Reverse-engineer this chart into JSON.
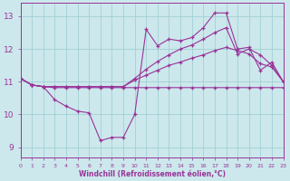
{
  "background_color": "#cce8ec",
  "grid_color": "#99ccd0",
  "line_color": "#993399",
  "xlabel": "Windchill (Refroidissement éolien,°C)",
  "xlim": [
    0,
    23
  ],
  "ylim": [
    8.7,
    13.4
  ],
  "yticks": [
    9,
    10,
    11,
    12,
    13
  ],
  "xticks": [
    0,
    1,
    2,
    3,
    4,
    5,
    6,
    7,
    8,
    9,
    10,
    11,
    12,
    13,
    14,
    15,
    16,
    17,
    18,
    19,
    20,
    21,
    22,
    23
  ],
  "series": [
    {
      "x": [
        0,
        1,
        2,
        3,
        4,
        5,
        6,
        7,
        8,
        9,
        10,
        11,
        12,
        13,
        14,
        15,
        16,
        17,
        18,
        19,
        20,
        21,
        22,
        23
      ],
      "y": [
        11.1,
        10.9,
        10.85,
        10.45,
        10.25,
        10.1,
        10.05,
        9.2,
        9.3,
        9.3,
        10.0,
        12.6,
        12.1,
        12.3,
        12.25,
        12.35,
        12.65,
        13.1,
        13.1,
        12.0,
        12.05,
        11.35,
        11.6,
        11.0
      ]
    },
    {
      "x": [
        0,
        1,
        2,
        3,
        4,
        5,
        6,
        7,
        8,
        9,
        10,
        11,
        12,
        13,
        14,
        15,
        16,
        17,
        18,
        19,
        20,
        21,
        22,
        23
      ],
      "y": [
        11.1,
        10.9,
        10.85,
        10.82,
        10.82,
        10.82,
        10.82,
        10.82,
        10.82,
        10.82,
        10.82,
        10.82,
        10.82,
        10.82,
        10.82,
        10.82,
        10.82,
        10.82,
        10.82,
        10.82,
        10.82,
        10.82,
        10.82,
        10.82
      ]
    },
    {
      "x": [
        0,
        1,
        2,
        3,
        4,
        5,
        6,
        7,
        8,
        9,
        10,
        11,
        12,
        13,
        14,
        15,
        16,
        17,
        18,
        19,
        20,
        21,
        22,
        23
      ],
      "y": [
        11.1,
        10.9,
        10.85,
        10.85,
        10.85,
        10.85,
        10.85,
        10.85,
        10.85,
        10.85,
        11.05,
        11.2,
        11.35,
        11.5,
        11.6,
        11.72,
        11.82,
        11.95,
        12.05,
        11.95,
        11.85,
        11.55,
        11.45,
        11.0
      ]
    },
    {
      "x": [
        0,
        1,
        2,
        3,
        4,
        5,
        6,
        7,
        8,
        9,
        10,
        11,
        12,
        13,
        14,
        15,
        16,
        17,
        18,
        19,
        20,
        21,
        22,
        23
      ],
      "y": [
        11.1,
        10.9,
        10.85,
        10.85,
        10.85,
        10.85,
        10.85,
        10.85,
        10.85,
        10.85,
        11.1,
        11.38,
        11.62,
        11.82,
        12.0,
        12.12,
        12.3,
        12.5,
        12.65,
        11.85,
        12.0,
        11.82,
        11.5,
        11.0
      ]
    }
  ]
}
